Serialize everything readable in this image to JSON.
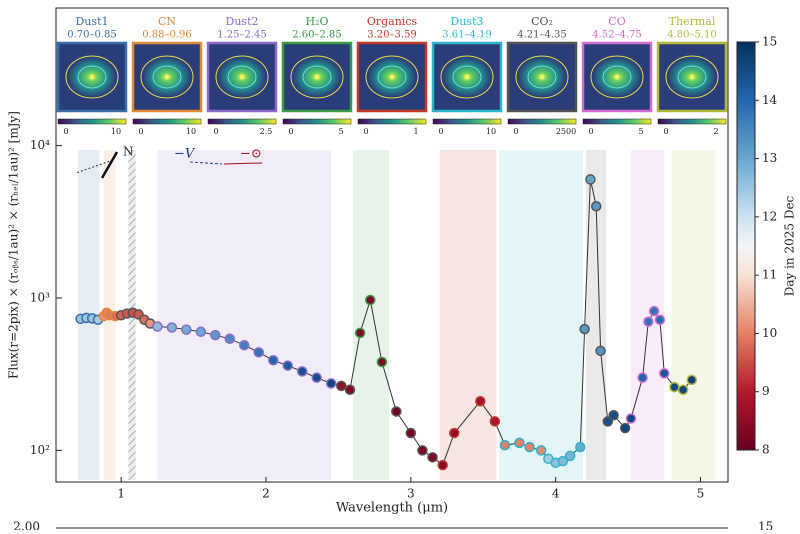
{
  "chart_data": {
    "type": "line",
    "xlabel": "Wavelength (μm)",
    "ylabel": "Flux(r=2pix) × (rₒᵦₛ/1au)² × (rₕₑₗ/1au)² [mJy]",
    "x": [
      0.72,
      0.76,
      0.8,
      0.84,
      0.88,
      0.9,
      0.92,
      0.96,
      1.0,
      1.04,
      1.08,
      1.12,
      1.16,
      1.2,
      1.25,
      1.35,
      1.45,
      1.55,
      1.65,
      1.75,
      1.85,
      1.95,
      2.05,
      2.15,
      2.25,
      2.35,
      2.45,
      2.52,
      2.58,
      2.65,
      2.72,
      2.8,
      2.9,
      3.0,
      3.08,
      3.15,
      3.22,
      3.3,
      3.48,
      3.58,
      3.65,
      3.75,
      3.82,
      3.9,
      3.95,
      4.0,
      4.05,
      4.1,
      4.17,
      4.2,
      4.24,
      4.28,
      4.31,
      4.36,
      4.4,
      4.48,
      4.52,
      4.6,
      4.64,
      4.68,
      4.72,
      4.75,
      4.82,
      4.88,
      4.94
    ],
    "values": [
      730,
      740,
      735,
      720,
      760,
      800,
      770,
      760,
      770,
      790,
      800,
      780,
      720,
      680,
      650,
      640,
      620,
      600,
      570,
      540,
      490,
      440,
      390,
      360,
      330,
      300,
      275,
      265,
      250,
      590,
      970,
      380,
      180,
      130,
      100,
      90,
      80,
      130,
      210,
      155,
      108,
      112,
      105,
      100,
      88,
      83,
      85,
      92,
      105,
      625,
      6000,
      4000,
      450,
      155,
      170,
      140,
      162,
      300,
      700,
      820,
      720,
      320,
      260,
      250,
      290
    ],
    "days": [
      12.5,
      12.5,
      12.5,
      12.4,
      10.2,
      10.0,
      9.9,
      9.8,
      9.7,
      9.6,
      9.5,
      9.6,
      9.8,
      10.2,
      12.6,
      12.8,
      12.9,
      13.0,
      13.2,
      13.4,
      13.6,
      13.8,
      14.0,
      14.2,
      14.4,
      14.5,
      14.6,
      8.6,
      8.4,
      8.3,
      8.3,
      8.3,
      8.2,
      8.2,
      8.3,
      8.3,
      8.4,
      8.6,
      8.8,
      8.9,
      10.0,
      10.0,
      10.0,
      10.1,
      12.4,
      12.6,
      12.7,
      12.8,
      13.0,
      13.2,
      13.0,
      13.2,
      13.3,
      14.4,
      14.5,
      14.6,
      14.6,
      14.0,
      13.8,
      13.8,
      13.9,
      14.3,
      14.5,
      14.6,
      14.7
    ],
    "xlim": [
      0.55,
      5.19
    ],
    "ylim": [
      62,
      80000
    ],
    "log_y": true,
    "xticks": [
      1,
      2,
      3,
      4,
      5
    ],
    "yticks": [
      {
        "value": 100,
        "label": "10²"
      },
      {
        "value": 1000,
        "label": "10³"
      },
      {
        "value": 10000,
        "label": "10⁴"
      }
    ],
    "masked": [
      1.05,
      1.1
    ],
    "bands": [
      {
        "name": "Dust1",
        "range": "0.70–0.85",
        "lo": 0.7,
        "hi": 0.85,
        "color": "#3b6ea8",
        "ticks": [
          "0",
          "10"
        ]
      },
      {
        "name": "CN",
        "range": "0.88–0.96",
        "lo": 0.88,
        "hi": 0.96,
        "color": "#e0893a",
        "ticks": [
          "0",
          "10"
        ]
      },
      {
        "name": "Dust2",
        "range": "1.25–2.45",
        "lo": 1.25,
        "hi": 2.45,
        "color": "#8c6bc8",
        "ticks": [
          "0",
          "2.5"
        ]
      },
      {
        "name": "H₂O",
        "range": "2.60–2.85",
        "lo": 2.6,
        "hi": 2.85,
        "color": "#3a9a45",
        "ticks": [
          "0",
          "5"
        ]
      },
      {
        "name": "Organics",
        "range": "3.20–3.59",
        "lo": 3.2,
        "hi": 3.59,
        "color": "#c0392b",
        "ticks": [
          "0",
          "1"
        ]
      },
      {
        "name": "Dust3",
        "range": "3.61–4.19",
        "lo": 3.61,
        "hi": 4.19,
        "color": "#2bb5c8",
        "ticks": [
          "0",
          "10"
        ]
      },
      {
        "name": "CO₂",
        "range": "4.21–4.35",
        "lo": 4.21,
        "hi": 4.35,
        "color": "#555555",
        "ticks": [
          "0",
          "2500"
        ]
      },
      {
        "name": "CO",
        "range": "4.52–4.75",
        "lo": 4.52,
        "hi": 4.75,
        "color": "#d36bd0",
        "ticks": [
          "0",
          "5"
        ]
      },
      {
        "name": "Thermal",
        "range": "4.80–5.10",
        "lo": 4.8,
        "hi": 5.1,
        "color": "#b3b83a",
        "ticks": [
          "0",
          "2"
        ]
      }
    ],
    "colorbar": {
      "label": "Day in 2025 Dec",
      "lim": [
        8,
        15
      ],
      "ticks": [
        8,
        9,
        10,
        11,
        12,
        13,
        14,
        15
      ]
    },
    "annotations": {
      "north": "N",
      "velocity": "−V",
      "sun": "−⊙"
    },
    "next_panel": {
      "left": "2.00",
      "right": "15"
    }
  }
}
